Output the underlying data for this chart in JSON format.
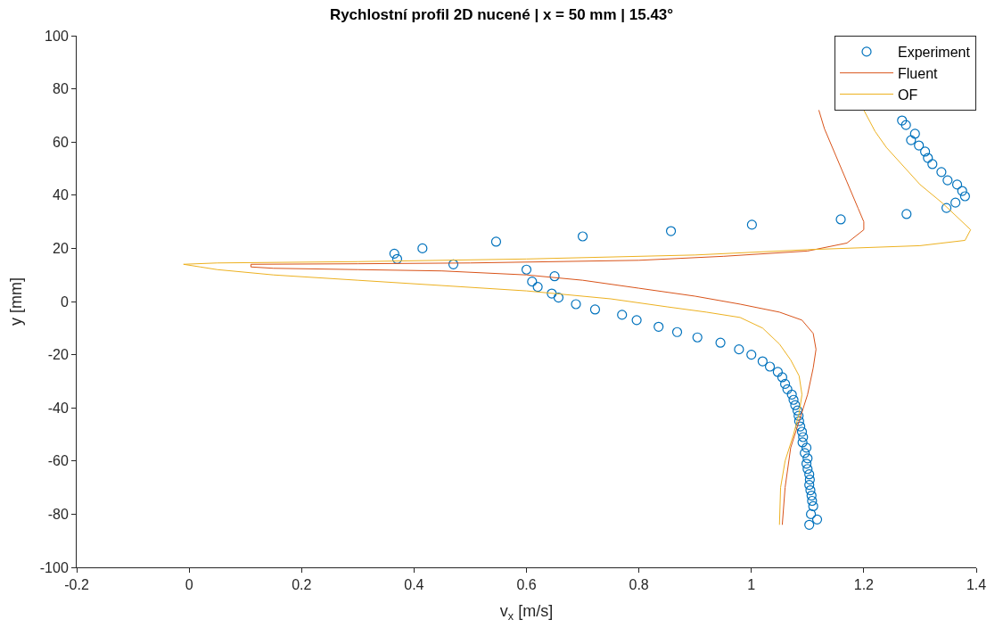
{
  "chart_data": {
    "type": "scatter",
    "title": "Rychlostní profil 2D nucené | x = 50 mm | 15.43°",
    "xlabel": "v$_{x}$ [m/s]",
    "ylabel": "y [mm]",
    "xlim": [
      -0.2,
      1.4
    ],
    "xticks": [
      -0.2,
      0,
      0.2,
      0.4,
      0.6,
      0.8,
      1,
      1.2,
      1.4
    ],
    "ylim": [
      -100,
      100
    ],
    "yticks": [
      -100,
      -80,
      -60,
      -40,
      -20,
      0,
      20,
      40,
      60,
      80,
      100
    ],
    "legend": "top right",
    "marker": "circle",
    "series": [
      {
        "name": "Experiment",
        "color": "#0072bd",
        "x": [
          1.268,
          1.275,
          1.291,
          1.284,
          1.298,
          1.309,
          1.314,
          1.322,
          1.338,
          1.349,
          1.366,
          1.375,
          1.38,
          1.363,
          1.347,
          1.276,
          1.159,
          1.001,
          0.857,
          0.7,
          0.546,
          0.415,
          0.365,
          0.37,
          0.47,
          0.6,
          0.65,
          0.61,
          0.62,
          0.645,
          0.657,
          0.688,
          0.722,
          0.77,
          0.796,
          0.835,
          0.868,
          0.904,
          0.945,
          0.978,
          1.0,
          1.02,
          1.033,
          1.047,
          1.055,
          1.06,
          1.064,
          1.072,
          1.075,
          1.078,
          1.082,
          1.084,
          1.085,
          1.087,
          1.09,
          1.092,
          1.091,
          1.098,
          1.095,
          1.1,
          1.098,
          1.1,
          1.103,
          1.104,
          1.103,
          1.105,
          1.107,
          1.108,
          1.11,
          1.106,
          1.117,
          1.103
        ],
        "values": [
          68.1,
          66.4,
          63.1,
          60.7,
          58.7,
          56.4,
          54.0,
          51.7,
          48.7,
          45.6,
          44.0,
          41.6,
          39.6,
          37.2,
          35.2,
          32.9,
          30.9,
          28.9,
          26.5,
          24.5,
          22.5,
          20,
          18,
          16,
          14,
          12,
          9.5,
          7.5,
          5.5,
          3,
          1.5,
          -1,
          -3,
          -5,
          -7,
          -9.5,
          -11.5,
          -13.5,
          -15.5,
          -18,
          -20,
          -22.5,
          -24.5,
          -26.5,
          -28.5,
          -31,
          -33,
          -35,
          -37,
          -39,
          -41,
          -43,
          -45,
          -47,
          -49,
          -51,
          -53,
          -55,
          -57,
          -59,
          -61,
          -63,
          -65,
          -67,
          -69,
          -71,
          -73,
          -75,
          -77,
          -80,
          -82,
          -84
        ]
      },
      {
        "name": "Fluent",
        "type": "line",
        "marker": "none",
        "color": "#d95319",
        "x": [
          1.055,
          1.06,
          1.07,
          1.085,
          1.1,
          1.11,
          1.115,
          1.11,
          1.09,
          1.05,
          0.98,
          0.9,
          0.8,
          0.7,
          0.6,
          0.45,
          0.3,
          0.15,
          0.11,
          0.11,
          0.3,
          0.5,
          0.8,
          0.95,
          1.1,
          1.17,
          1.2,
          1.2,
          1.19,
          1.17,
          1.15,
          1.13,
          1.12
        ],
        "values": [
          -84,
          -70,
          -55,
          -45,
          -35,
          -25,
          -18,
          -12,
          -7,
          -4,
          -1,
          2,
          5,
          8,
          10,
          11.5,
          12,
          12.5,
          13,
          14,
          14.2,
          14.5,
          15.5,
          17,
          19,
          22,
          27,
          30,
          35,
          45,
          55,
          65,
          72
        ]
      },
      {
        "name": "OF",
        "type": "line",
        "marker": "none",
        "color": "#edb120",
        "x": [
          1.05,
          1.052,
          1.06,
          1.075,
          1.085,
          1.09,
          1.085,
          1.07,
          1.05,
          1.02,
          0.98,
          0.92,
          0.85,
          0.75,
          0.6,
          0.45,
          0.3,
          0.15,
          0.05,
          0.02,
          -0.01,
          0.05,
          0.3,
          0.6,
          0.9,
          1.1,
          1.3,
          1.38,
          1.39,
          1.37,
          1.34,
          1.3,
          1.27,
          1.24,
          1.22,
          1.2
        ],
        "values": [
          -84,
          -70,
          -60,
          -50,
          -42,
          -35,
          -28,
          -22,
          -16,
          -10,
          -6,
          -4,
          -2,
          1,
          4,
          6,
          8,
          10,
          12,
          13,
          14,
          14.5,
          15,
          16,
          17.5,
          19.5,
          21,
          23,
          27,
          31,
          37,
          44,
          51,
          58,
          64,
          72
        ]
      }
    ]
  }
}
